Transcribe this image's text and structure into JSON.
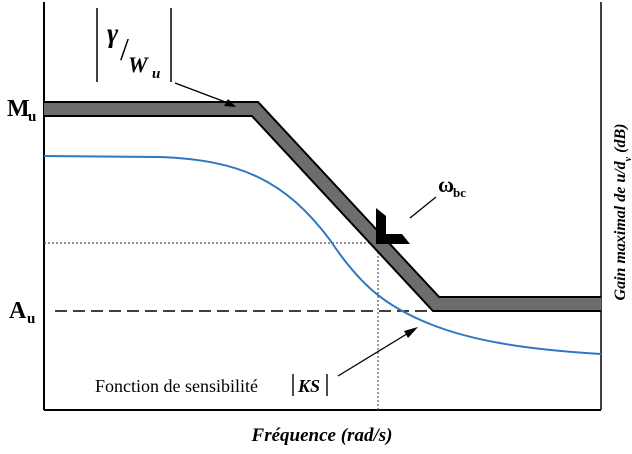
{
  "title": "",
  "axes": {
    "x_label": "Fréquence (rad/s)",
    "y_label_prefix": "Gain maximal de u/d",
    "y_label_sub": "v",
    "y_label_suffix": " (dB)"
  },
  "levels": {
    "M": {
      "base": "M",
      "sub": "u"
    },
    "A": {
      "base": "A",
      "sub": "u"
    }
  },
  "bound": {
    "gamma": "γ",
    "slash": "/",
    "W": "W",
    "W_sub": "u"
  },
  "crossover": {
    "omega": "ω",
    "sub": "bc"
  },
  "ks_curve": {
    "label_prefix": "Fonction de sensibilité ",
    "label_math": "KS"
  },
  "colors": {
    "bound_fill": "#6d6d6d",
    "bound_edge": "#000000",
    "ks_curve": "#2f77c3",
    "axes": "#000000"
  }
}
